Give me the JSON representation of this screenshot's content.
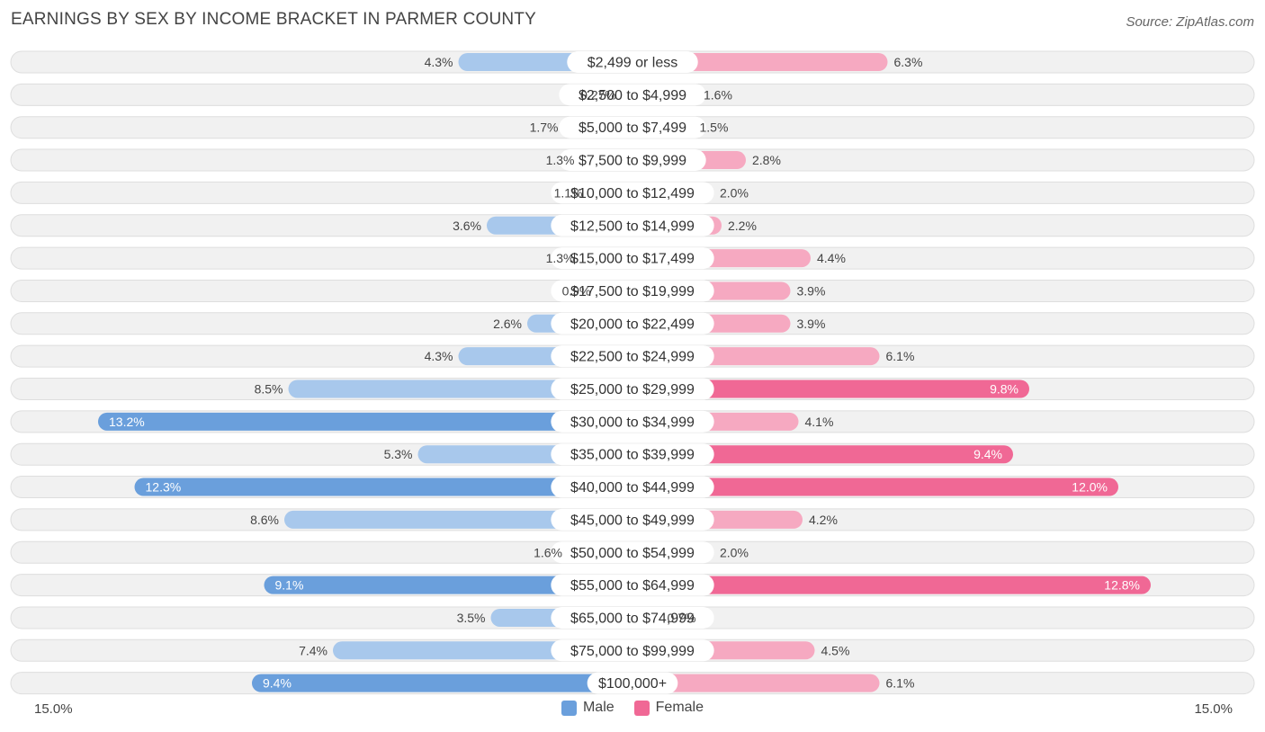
{
  "header": {
    "title": "EARNINGS BY SEX BY INCOME BRACKET IN PARMER COUNTY",
    "source": "Source: ZipAtlas.com"
  },
  "axis": {
    "left_label": "15.0%",
    "right_label": "15.0%"
  },
  "legend": {
    "male": "Male",
    "female": "Female"
  },
  "colors": {
    "male_light": "#a8c8ec",
    "male_strong": "#6a9fdc",
    "female_light": "#f6a9c1",
    "female_strong": "#f06895",
    "row_bg": "#f1f1f1",
    "row_border": "#dedede"
  },
  "chart_data": {
    "type": "bar",
    "orientation": "horizontal-diverging",
    "title": "EARNINGS BY SEX BY INCOME BRACKET IN PARMER COUNTY",
    "xlim": [
      -15,
      15
    ],
    "categories": [
      "$2,499 or less",
      "$2,500 to $4,999",
      "$5,000 to $7,499",
      "$7,500 to $9,999",
      "$10,000 to $12,499",
      "$12,500 to $14,999",
      "$15,000 to $17,499",
      "$17,500 to $19,999",
      "$20,000 to $22,499",
      "$22,500 to $24,999",
      "$25,000 to $29,999",
      "$30,000 to $34,999",
      "$35,000 to $39,999",
      "$40,000 to $44,999",
      "$45,000 to $49,999",
      "$50,000 to $54,999",
      "$55,000 to $64,999",
      "$65,000 to $74,999",
      "$75,000 to $99,999",
      "$100,000+"
    ],
    "series": [
      {
        "name": "Male",
        "values": [
          4.3,
          0.27,
          1.7,
          1.3,
          1.1,
          3.6,
          1.3,
          0.9,
          2.6,
          4.3,
          8.5,
          13.2,
          5.3,
          12.3,
          8.6,
          1.6,
          9.1,
          3.5,
          7.4,
          9.4
        ],
        "labels": [
          "4.3%",
          "0.27%",
          "1.7%",
          "1.3%",
          "1.1%",
          "3.6%",
          "1.3%",
          "0.9%",
          "2.6%",
          "4.3%",
          "8.5%",
          "13.2%",
          "5.3%",
          "12.3%",
          "8.6%",
          "1.6%",
          "9.1%",
          "3.5%",
          "7.4%",
          "9.4%"
        ]
      },
      {
        "name": "Female",
        "values": [
          6.3,
          1.6,
          1.5,
          2.8,
          2.0,
          2.2,
          4.4,
          3.9,
          3.9,
          6.1,
          9.8,
          4.1,
          9.4,
          12.0,
          4.2,
          2.0,
          12.8,
          0.7,
          4.5,
          6.1
        ],
        "labels": [
          "6.3%",
          "1.6%",
          "1.5%",
          "2.8%",
          "2.0%",
          "2.2%",
          "4.4%",
          "3.9%",
          "3.9%",
          "6.1%",
          "9.8%",
          "4.1%",
          "9.4%",
          "12.0%",
          "4.2%",
          "2.0%",
          "12.8%",
          "0.7%",
          "4.5%",
          "6.1%"
        ]
      }
    ]
  }
}
